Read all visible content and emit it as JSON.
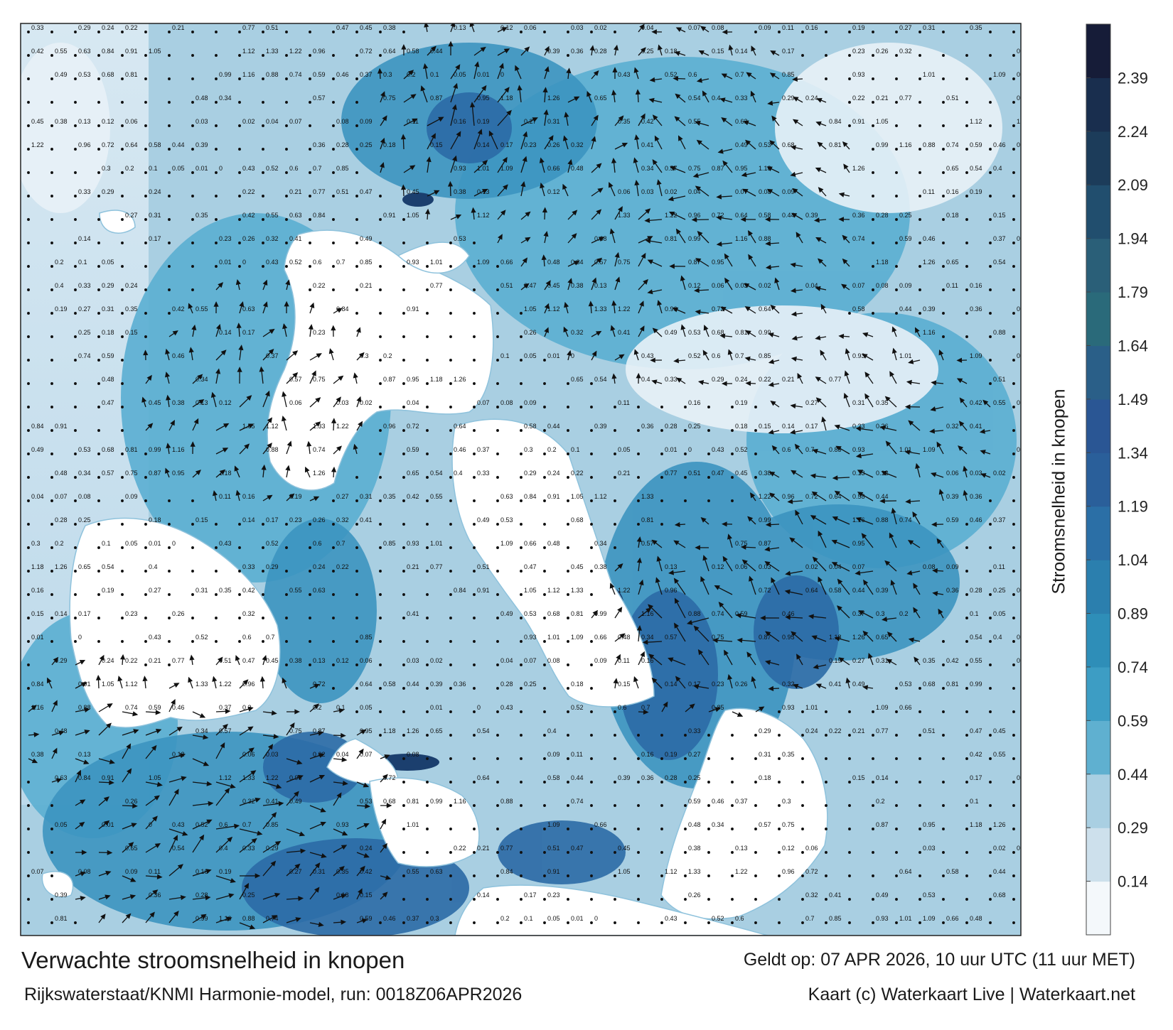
{
  "caption": {
    "title": "Verwachte stroomsnelheid in knopen",
    "model_run": "Rijkswaterstaat/KNMI Harmonie-model, run: 0018Z06APR2026",
    "valid_time": "Geldt op: 07 APR 2026, 10 uur UTC (11 uur MET)",
    "credit": "Kaart (c) Waterkaart Live | Waterkaart.net"
  },
  "colorbar": {
    "label": "Stroomsnelheid in knopen",
    "ticks": [
      "0.14",
      "0.29",
      "0.44",
      "0.59",
      "0.74",
      "0.89",
      "1.04",
      "1.19",
      "1.34",
      "1.49",
      "1.64",
      "1.79",
      "1.94",
      "2.09",
      "2.24",
      "2.39"
    ],
    "band_colors": [
      "#f4f8fb",
      "#cde0ec",
      "#a9cfe2",
      "#5fb0d0",
      "#3d9dc4",
      "#2e8eb8",
      "#2b7fae",
      "#2b6fa6",
      "#2a5f9a",
      "#2a5694",
      "#2a5f88",
      "#2a6a7a",
      "#2a5f78",
      "#214e6e",
      "#1c3c5a",
      "#192e4e",
      "#161c38"
    ]
  },
  "map": {
    "land_color": "#ffffff",
    "sea_colors": {
      "calm": "#e8f1f7",
      "light": "#b4d4e6",
      "medium": "#3f98c2",
      "strong": "#2b6aa6",
      "very_strong": "#1b3f6e"
    },
    "sample_labels": [
      "0.33",
      "0.29",
      "0.24",
      "0.22",
      "0.21",
      "0.77",
      "0.51",
      "0.47",
      "0.45",
      "0.38",
      "0.13",
      "0.12",
      "0.06",
      "0.03",
      "0.02",
      "0.04",
      "0.07",
      "0.08",
      "0.09",
      "0.11",
      "0.16",
      "0.19",
      "0.27",
      "0.31",
      "0.35",
      "0.42",
      "0.55",
      "0.63",
      "0.84",
      "0.91",
      "1.05",
      "1.12",
      "1.33",
      "1.22",
      "0.96",
      "0.72",
      "0.64",
      "0.58",
      "0.44",
      "0.39",
      "0.36",
      "0.28",
      "0.25",
      "0.18",
      "0.15",
      "0.14",
      "0.17",
      "0.23",
      "0.26",
      "0.32",
      "0.41",
      "0.49",
      "0.53",
      "0.68",
      "0.81",
      "0.99",
      "1.16",
      "0.88",
      "0.74",
      "0.59",
      "0.46",
      "0.37",
      "0.3",
      "0.2",
      "0.1",
      "0.05",
      "0.01",
      "0",
      "0.43",
      "0.52",
      "0.6",
      "0.7",
      "0.85",
      "0.93",
      "1.01",
      "1.09",
      "0.66",
      "0.48",
      "0.34",
      "0.57",
      "0.75",
      "0.87",
      "0.95",
      "1.18",
      "1.26",
      "0.65",
      "0.54",
      "0.4"
    ]
  }
}
